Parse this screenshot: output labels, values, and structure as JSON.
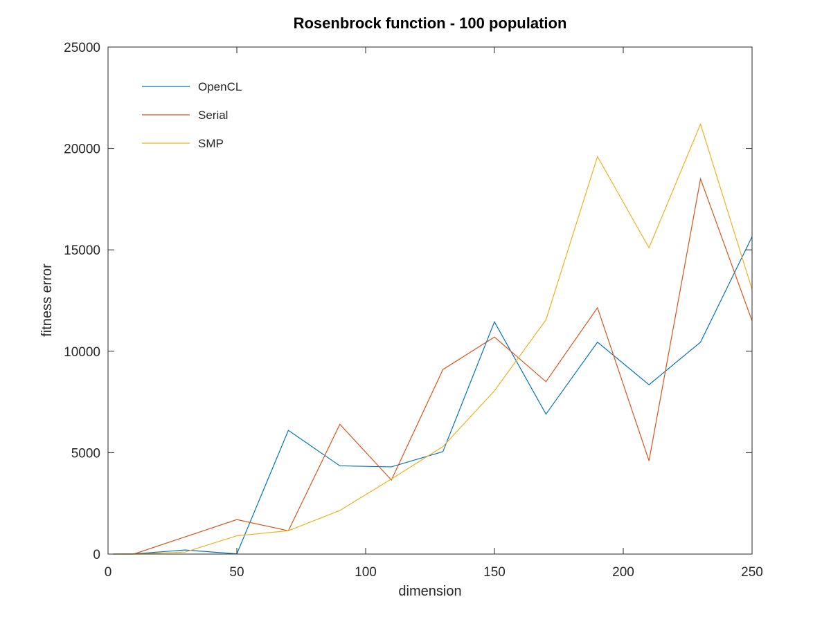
{
  "chart_data": {
    "type": "line",
    "title": "Rosenbrock function - 100 population",
    "xlabel": "dimension",
    "ylabel": "fitness error",
    "xlim": [
      0,
      250
    ],
    "ylim": [
      0,
      25000
    ],
    "xticks": [
      0,
      50,
      100,
      150,
      200,
      250
    ],
    "xtick_labels": [
      "0",
      "50",
      "100",
      "150",
      "200",
      "250"
    ],
    "yticks": [
      0,
      5000,
      10000,
      15000,
      20000,
      25000
    ],
    "ytick_labels": [
      "0",
      "5000",
      "10000",
      "15000",
      "20000",
      "25000"
    ],
    "grid": false,
    "legend_position": "top-left",
    "x": [
      2,
      10,
      30,
      50,
      70,
      90,
      110,
      130,
      150,
      170,
      190,
      210,
      230,
      250
    ],
    "series": [
      {
        "name": "OpenCL",
        "color": "#0072bd",
        "values": [
          0,
          10,
          200,
          10,
          6100,
          4350,
          4300,
          5050,
          11450,
          6900,
          10450,
          8350,
          10450,
          15650
        ]
      },
      {
        "name": "Serial",
        "color": "#d95319",
        "values": [
          0,
          0,
          850,
          1700,
          1150,
          6400,
          3650,
          9100,
          10700,
          8500,
          12150,
          4600,
          18500,
          11500
        ]
      },
      {
        "name": "SMP",
        "color": "#edb120",
        "values": [
          0,
          0,
          100,
          900,
          1150,
          2150,
          3700,
          5300,
          8050,
          11550,
          19600,
          15100,
          21200,
          13050
        ]
      }
    ]
  }
}
